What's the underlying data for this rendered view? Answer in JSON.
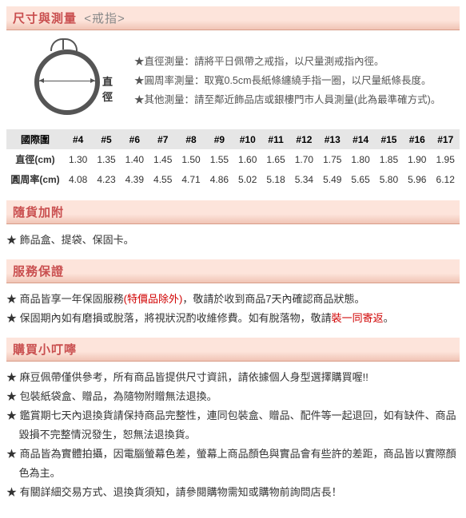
{
  "sections": {
    "size": {
      "main": "尺寸與測量",
      "sub": "<戒指>"
    },
    "addon": {
      "main": "隨貨加附"
    },
    "warranty": {
      "main": "服務保證"
    },
    "notice": {
      "main": "購買小叮嚀"
    }
  },
  "ring": {
    "diameter_label": "直徑",
    "notes": [
      "★直徑測量：請將平日佩帶之戒指，以尺量測戒指內徑。",
      "★圓周率測量：取寬0.5cm長紙條纏繞手指一圈，以尺量紙條長度。",
      "★其他測量：請至鄰近飾品店或銀樓門市人員測量(此為最準確方式)。"
    ]
  },
  "table": {
    "row_headers": [
      "國際圍",
      "直徑(cm)",
      "圓周率(cm)"
    ],
    "cols": [
      "#4",
      "#5",
      "#6",
      "#7",
      "#8",
      "#9",
      "#10",
      "#11",
      "#12",
      "#13",
      "#14",
      "#15",
      "#16",
      "#17"
    ],
    "diameter": [
      "1.30",
      "1.35",
      "1.40",
      "1.45",
      "1.50",
      "1.55",
      "1.60",
      "1.65",
      "1.70",
      "1.75",
      "1.80",
      "1.85",
      "1.90",
      "1.95"
    ],
    "circumference": [
      "4.08",
      "4.23",
      "4.39",
      "4.55",
      "4.71",
      "4.86",
      "5.02",
      "5.18",
      "5.34",
      "5.49",
      "5.65",
      "5.80",
      "5.96",
      "6.12"
    ]
  },
  "addon_items": [
    "飾品盒、提袋、保固卡。"
  ],
  "warranty_items": [
    {
      "pre": "商品皆享一年保固服務",
      "red": "(特價品除外)",
      "post": "，敬請於收到商品7天內確認商品狀態。"
    },
    {
      "pre": "保固期內如有磨損或脫落，將視狀況酌收維修費。如有脫落物，敬請",
      "red": "裝一同寄返",
      "post": "。"
    }
  ],
  "notice_items": [
    "麻豆佩帶僅供參考，所有商品皆提供尺寸資訊，請依據個人身型選擇購買喔!!",
    "包裝紙袋盒、贈品，為隨物附贈無法退換。",
    "鑑賞期七天內退換貨請保持商品完整性，連同包裝盒、贈品、配件等一起退回，如有缺件、商品毀損不完整情況發生，恕無法退換貨。",
    "商品皆為實體拍攝，因電腦螢幕色差，螢幕上商品顏色與實品會有些許的差距，商品皆以實際顏色為主。",
    "有關詳細交易方式、退換貨須知，請參閱購物需知或購物前詢問店長！"
  ],
  "colors": {
    "header_text": "#c94f4f",
    "header_bg_top": "#fde4db",
    "header_border": "#d89c88",
    "red": "#d00000"
  }
}
